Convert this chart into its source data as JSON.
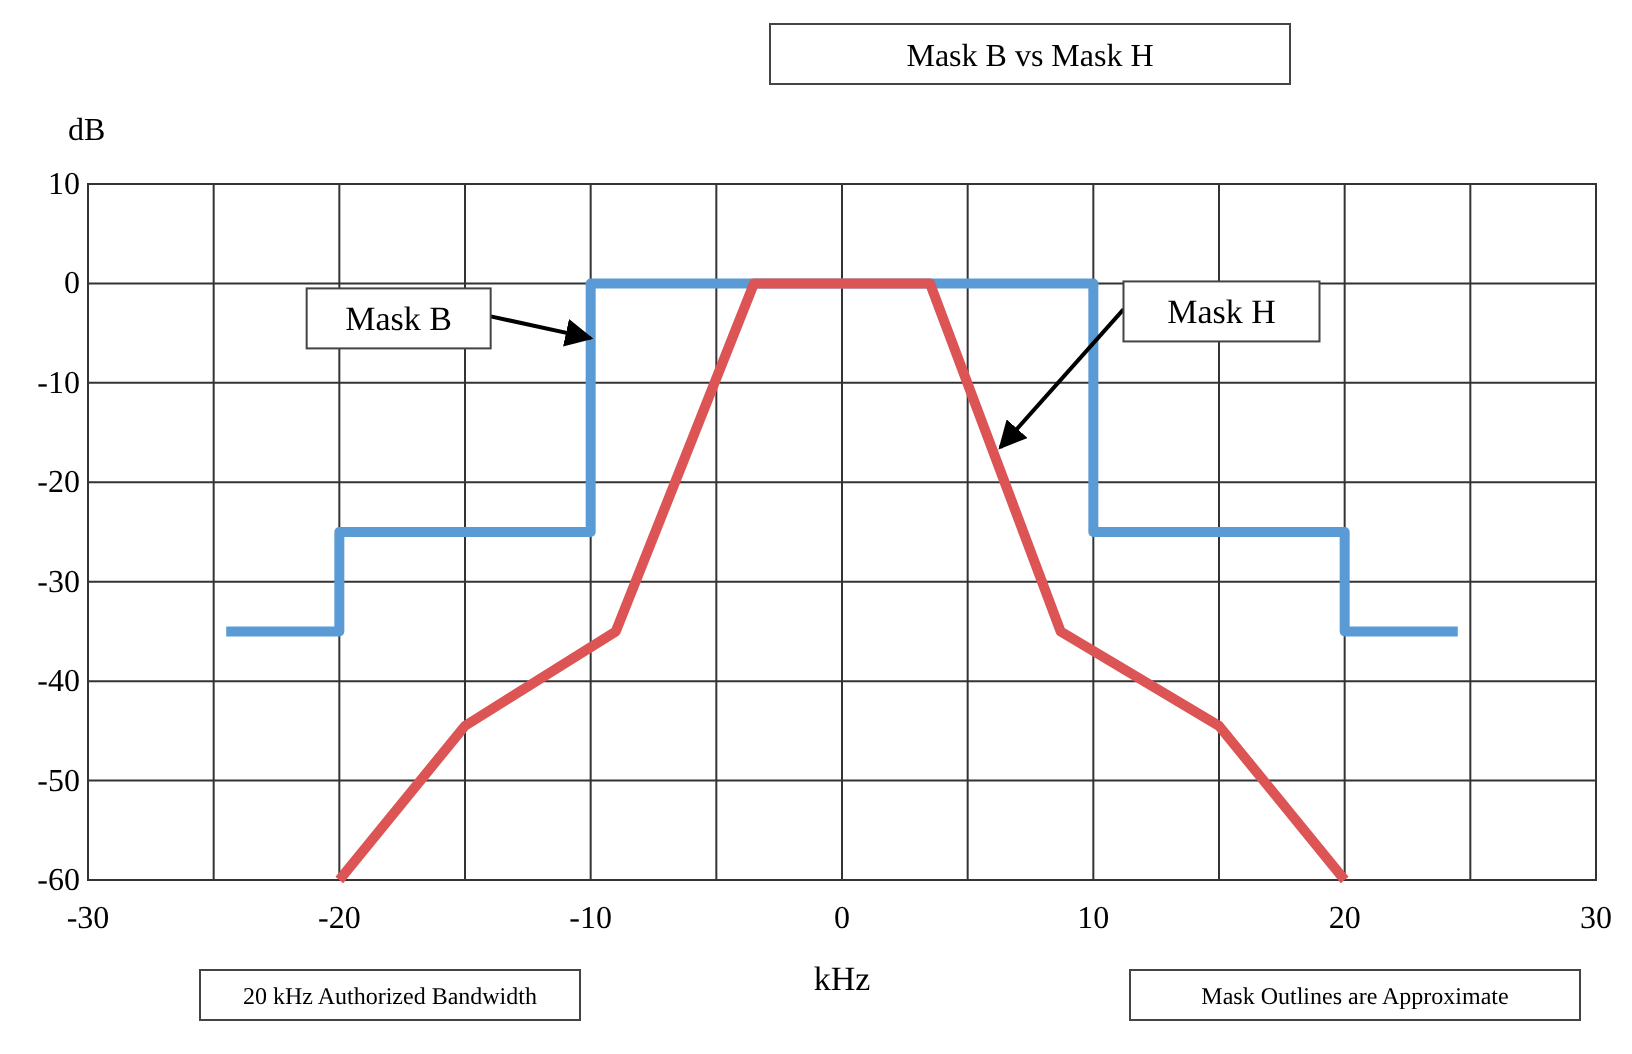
{
  "chart_data": {
    "type": "line",
    "title": "Mask B vs Mask H",
    "xlabel": "kHz",
    "ylabel": "dB",
    "series": [
      {
        "color": "#5b9bd5",
        "x": [
          -24.5,
          -20,
          -20,
          -10,
          -10,
          10,
          10,
          20,
          20,
          24.5
        ],
        "values": [
          -35,
          -35,
          -25,
          -25,
          0,
          0,
          -25,
          -25,
          -35,
          -35
        ]
      },
      {
        "color": "#dc5454",
        "x": [
          -20,
          -15,
          -9,
          -3.5,
          3.5,
          8.7,
          15,
          20
        ],
        "values": [
          -60,
          -44.5,
          -35,
          0,
          0,
          -35,
          -44.5,
          -60
        ]
      }
    ],
    "xlim": [
      -30,
      30
    ],
    "ylim": [
      -60,
      10
    ],
    "xticks": [
      -30,
      {
        "value": -25,
        "label": null
      },
      -20,
      {
        "value": -15,
        "label": null
      },
      -10,
      {
        "value": -5,
        "label": null
      },
      0,
      {
        "value": 5,
        "label": null
      },
      10,
      {
        "value": 15,
        "label": null
      },
      20,
      {
        "value": 25,
        "label": null
      },
      30
    ],
    "yticks": [
      -60,
      -50,
      -40,
      -30,
      -20,
      -10,
      0,
      10
    ],
    "grid": true,
    "marker": "none",
    "line_style": "solid",
    "annotations": [
      {
        "text": "Mask B",
        "x": -10,
        "y": -5.5
      },
      {
        "text": "Mask H",
        "x": 6.3,
        "y": -16.5
      },
      "20 kHz Authorized Bandwidth",
      "Mask Outlines are Approximate"
    ]
  }
}
